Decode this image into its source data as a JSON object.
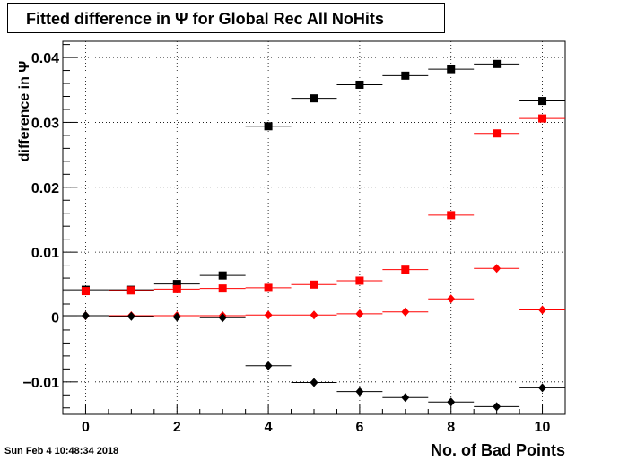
{
  "title": "Fitted difference in  Ψ  for Global Rec All NoHits",
  "timestamp": "Sun Feb  4 10:48:34 2018",
  "chart_data": {
    "type": "scatter",
    "title": "Fitted difference in  Ψ  for Global Rec All NoHits",
    "xlabel": "No. of Bad Points",
    "ylabel": "difference in  Ψ",
    "xlim": [
      -0.5,
      10.5
    ],
    "ylim": [
      -0.015,
      0.0425
    ],
    "x_ticks": [
      0,
      2,
      4,
      6,
      8,
      10
    ],
    "x_tick_labels": [
      "0",
      "2",
      "4",
      "6",
      "8",
      "10"
    ],
    "y_ticks": [
      -0.01,
      0,
      0.01,
      0.02,
      0.03,
      0.04
    ],
    "y_tick_labels": [
      "−0.01",
      "0",
      "0.01",
      "0.02",
      "0.03",
      "0.04"
    ],
    "grid": true,
    "series": [
      {
        "color": "#000000",
        "marker": "square",
        "x": [
          0,
          1,
          2,
          3,
          4,
          5,
          6,
          7,
          8,
          9,
          10
        ],
        "values": [
          0.0042,
          0.0042,
          0.0051,
          0.0064,
          0.0294,
          0.0337,
          0.0358,
          0.0372,
          0.0382,
          0.039,
          0.0333
        ]
      },
      {
        "color": "#ff0000",
        "marker": "square",
        "x": [
          0,
          1,
          2,
          3,
          4,
          5,
          6,
          7,
          8,
          9,
          10
        ],
        "values": [
          0.004,
          0.0041,
          0.0043,
          0.0044,
          0.0045,
          0.005,
          0.0056,
          0.0073,
          0.0157,
          0.0283,
          0.0306
        ]
      },
      {
        "color": "#ff0000",
        "marker": "diamond",
        "x": [
          0,
          1,
          2,
          3,
          4,
          5,
          6,
          7,
          8,
          9,
          10
        ],
        "values": [
          0.0002,
          0.0002,
          0.0002,
          0.0002,
          0.0003,
          0.0003,
          0.0005,
          0.0008,
          0.0028,
          0.0075,
          0.0011
        ]
      },
      {
        "color": "#000000",
        "marker": "diamond",
        "x": [
          0,
          1,
          2,
          3,
          4,
          5,
          6,
          7,
          8,
          9,
          10
        ],
        "values": [
          0.0002,
          0.0001,
          0.0,
          -0.0001,
          -0.0075,
          -0.0101,
          -0.0115,
          -0.0124,
          -0.0131,
          -0.0138,
          -0.0109
        ]
      }
    ]
  }
}
